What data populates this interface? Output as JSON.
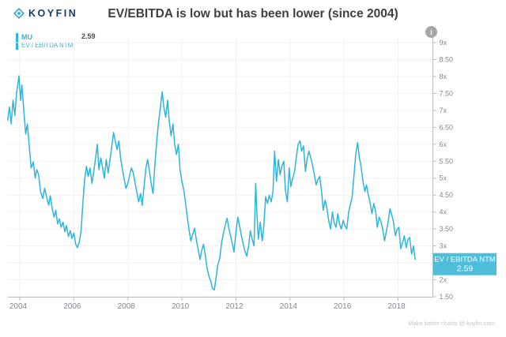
{
  "header": {
    "logo_text": "KOYFIN",
    "title": "EV/EBITDA is low but has been lower (since 2004)"
  },
  "legend": {
    "ticker": "MU",
    "series_label": "EV / EBITDA NTM",
    "last_value": "2.59"
  },
  "info_badge": {
    "glyph": "i"
  },
  "footer": {
    "credit": "Make better charts @ koyfin.com"
  },
  "colors": {
    "line": "#30b4d8",
    "label_box": "#3fb8d8",
    "label_text": "#ffffff",
    "grid": "#f1f2f4",
    "axis": "#b6bcc1",
    "tick_text": "#85898e",
    "title_text": "#3c4043",
    "logo_navy": "#1c3c66",
    "logo_cyan": "#2aa9d2"
  },
  "chart_data": {
    "type": "line",
    "title": "EV/EBITDA is low but has been lower (since 2004)",
    "series_name": "MU EV / EBITDA NTM",
    "xlabel": "",
    "ylabel": "EV / EBITDA NTM (x)",
    "grid": true,
    "legend_position": "top-left",
    "xlim": [
      2003.55,
      2019.25
    ],
    "ylim": [
      1.5,
      9
    ],
    "x_ticks": [
      2004,
      2006,
      2008,
      2010,
      2012,
      2014,
      2016,
      2018
    ],
    "y_ticks": [
      {
        "v": 9.0,
        "label": "9x"
      },
      {
        "v": 8.5,
        "label": "8.50"
      },
      {
        "v": 8.0,
        "label": "8x"
      },
      {
        "v": 7.5,
        "label": "7.50"
      },
      {
        "v": 7.0,
        "label": "7x"
      },
      {
        "v": 6.5,
        "label": "6.50"
      },
      {
        "v": 6.0,
        "label": "6x"
      },
      {
        "v": 5.5,
        "label": "5.50"
      },
      {
        "v": 5.0,
        "label": "5x"
      },
      {
        "v": 4.5,
        "label": "4.50"
      },
      {
        "v": 4.0,
        "label": "4x"
      },
      {
        "v": 3.5,
        "label": "3.50"
      },
      {
        "v": 3.0,
        "label": "3x"
      },
      {
        "v": 2.5,
        "label": "2.50"
      },
      {
        "v": 2.0,
        "label": "2x"
      },
      {
        "v": 1.5,
        "label": "1.50"
      }
    ],
    "last_value": 2.59,
    "last_value_label": {
      "line1": "EV / EBITDA NTM",
      "line2": "2.59"
    },
    "points": [
      [
        2003.55,
        6.7
      ],
      [
        2003.62,
        7.1
      ],
      [
        2003.68,
        6.6
      ],
      [
        2003.75,
        7.3
      ],
      [
        2003.82,
        6.85
      ],
      [
        2003.88,
        7.5
      ],
      [
        2003.97,
        8.02
      ],
      [
        2004.03,
        7.3
      ],
      [
        2004.08,
        7.75
      ],
      [
        2004.15,
        7.0
      ],
      [
        2004.22,
        6.3
      ],
      [
        2004.28,
        6.6
      ],
      [
        2004.35,
        5.95
      ],
      [
        2004.42,
        5.3
      ],
      [
        2004.5,
        5.48
      ],
      [
        2004.57,
        5.0
      ],
      [
        2004.63,
        5.25
      ],
      [
        2004.7,
        5.1
      ],
      [
        2004.77,
        4.6
      ],
      [
        2004.85,
        4.4
      ],
      [
        2004.92,
        4.7
      ],
      [
        2005.0,
        4.42
      ],
      [
        2005.07,
        4.2
      ],
      [
        2005.13,
        4.48
      ],
      [
        2005.2,
        4.1
      ],
      [
        2005.27,
        3.85
      ],
      [
        2005.33,
        4.05
      ],
      [
        2005.4,
        3.65
      ],
      [
        2005.47,
        3.8
      ],
      [
        2005.53,
        3.55
      ],
      [
        2005.6,
        3.7
      ],
      [
        2005.67,
        3.42
      ],
      [
        2005.73,
        3.6
      ],
      [
        2005.8,
        3.28
      ],
      [
        2005.87,
        3.45
      ],
      [
        2005.93,
        3.22
      ],
      [
        2006.0,
        3.38
      ],
      [
        2006.07,
        3.05
      ],
      [
        2006.13,
        2.95
      ],
      [
        2006.2,
        3.1
      ],
      [
        2006.27,
        3.45
      ],
      [
        2006.33,
        4.2
      ],
      [
        2006.4,
        4.95
      ],
      [
        2006.47,
        5.35
      ],
      [
        2006.53,
        5.05
      ],
      [
        2006.6,
        5.3
      ],
      [
        2006.67,
        4.85
      ],
      [
        2006.73,
        5.15
      ],
      [
        2006.8,
        5.55
      ],
      [
        2006.87,
        6.0
      ],
      [
        2006.93,
        5.25
      ],
      [
        2007.0,
        5.6
      ],
      [
        2007.07,
        5.3
      ],
      [
        2007.13,
        5.0
      ],
      [
        2007.2,
        5.55
      ],
      [
        2007.27,
        5.15
      ],
      [
        2007.33,
        5.5
      ],
      [
        2007.4,
        5.9
      ],
      [
        2007.47,
        6.35
      ],
      [
        2007.53,
        6.1
      ],
      [
        2007.6,
        5.85
      ],
      [
        2007.67,
        6.1
      ],
      [
        2007.73,
        5.6
      ],
      [
        2007.8,
        5.25
      ],
      [
        2007.87,
        4.95
      ],
      [
        2007.93,
        4.7
      ],
      [
        2008.0,
        4.85
      ],
      [
        2008.07,
        5.1
      ],
      [
        2008.13,
        5.3
      ],
      [
        2008.2,
        5.15
      ],
      [
        2008.27,
        4.85
      ],
      [
        2008.33,
        4.6
      ],
      [
        2008.4,
        4.3
      ],
      [
        2008.47,
        4.55
      ],
      [
        2008.53,
        4.2
      ],
      [
        2008.6,
        4.75
      ],
      [
        2008.67,
        5.3
      ],
      [
        2008.73,
        5.55
      ],
      [
        2008.8,
        5.2
      ],
      [
        2008.87,
        4.8
      ],
      [
        2008.93,
        4.55
      ],
      [
        2009.0,
        5.4
      ],
      [
        2009.07,
        6.1
      ],
      [
        2009.13,
        6.6
      ],
      [
        2009.2,
        7.05
      ],
      [
        2009.27,
        7.55
      ],
      [
        2009.33,
        7.1
      ],
      [
        2009.4,
        6.8
      ],
      [
        2009.47,
        7.3
      ],
      [
        2009.53,
        6.7
      ],
      [
        2009.6,
        6.25
      ],
      [
        2009.67,
        6.6
      ],
      [
        2009.73,
        6.0
      ],
      [
        2009.8,
        5.7
      ],
      [
        2009.87,
        6.0
      ],
      [
        2009.93,
        5.25
      ],
      [
        2010.0,
        4.9
      ],
      [
        2010.07,
        4.65
      ],
      [
        2010.13,
        4.3
      ],
      [
        2010.2,
        3.85
      ],
      [
        2010.27,
        3.45
      ],
      [
        2010.33,
        3.15
      ],
      [
        2010.4,
        3.35
      ],
      [
        2010.47,
        3.52
      ],
      [
        2010.53,
        3.2
      ],
      [
        2010.6,
        2.9
      ],
      [
        2010.67,
        2.6
      ],
      [
        2010.73,
        2.85
      ],
      [
        2010.8,
        3.05
      ],
      [
        2010.87,
        2.7
      ],
      [
        2010.93,
        2.35
      ],
      [
        2011.0,
        2.1
      ],
      [
        2011.07,
        1.95
      ],
      [
        2011.13,
        1.75
      ],
      [
        2011.2,
        1.7
      ],
      [
        2011.27,
        2.1
      ],
      [
        2011.33,
        2.45
      ],
      [
        2011.4,
        2.62
      ],
      [
        2011.47,
        3.1
      ],
      [
        2011.53,
        3.35
      ],
      [
        2011.6,
        3.6
      ],
      [
        2011.67,
        3.82
      ],
      [
        2011.73,
        3.55
      ],
      [
        2011.8,
        3.3
      ],
      [
        2011.87,
        3.05
      ],
      [
        2011.93,
        2.82
      ],
      [
        2012.0,
        3.4
      ],
      [
        2012.07,
        3.85
      ],
      [
        2012.13,
        3.6
      ],
      [
        2012.2,
        3.3
      ],
      [
        2012.27,
        3.05
      ],
      [
        2012.33,
        2.85
      ],
      [
        2012.4,
        2.7
      ],
      [
        2012.47,
        3.0
      ],
      [
        2012.53,
        3.45
      ],
      [
        2012.6,
        3.2
      ],
      [
        2012.67,
        3.0
      ],
      [
        2012.73,
        4.85
      ],
      [
        2012.78,
        3.9
      ],
      [
        2012.83,
        3.2
      ],
      [
        2012.9,
        3.7
      ],
      [
        2012.97,
        3.15
      ],
      [
        2013.03,
        3.55
      ],
      [
        2013.1,
        4.45
      ],
      [
        2013.17,
        4.25
      ],
      [
        2013.23,
        4.5
      ],
      [
        2013.3,
        4.3
      ],
      [
        2013.37,
        4.6
      ],
      [
        2013.43,
        5.8
      ],
      [
        2013.5,
        4.9
      ],
      [
        2013.57,
        5.55
      ],
      [
        2013.63,
        5.1
      ],
      [
        2013.7,
        5.35
      ],
      [
        2013.77,
        5.5
      ],
      [
        2013.83,
        4.65
      ],
      [
        2013.9,
        4.3
      ],
      [
        2013.97,
        5.3
      ],
      [
        2014.03,
        4.75
      ],
      [
        2014.1,
        5.0
      ],
      [
        2014.17,
        5.2
      ],
      [
        2014.23,
        5.6
      ],
      [
        2014.3,
        6.0
      ],
      [
        2014.37,
        6.1
      ],
      [
        2014.43,
        5.8
      ],
      [
        2014.5,
        5.95
      ],
      [
        2014.57,
        5.2
      ],
      [
        2014.63,
        5.55
      ],
      [
        2014.7,
        5.8
      ],
      [
        2014.77,
        5.6
      ],
      [
        2014.83,
        5.4
      ],
      [
        2014.9,
        5.1
      ],
      [
        2014.97,
        4.8
      ],
      [
        2015.03,
        4.95
      ],
      [
        2015.1,
        5.05
      ],
      [
        2015.17,
        4.6
      ],
      [
        2015.23,
        4.05
      ],
      [
        2015.3,
        4.35
      ],
      [
        2015.37,
        4.1
      ],
      [
        2015.43,
        3.75
      ],
      [
        2015.5,
        3.5
      ],
      [
        2015.57,
        4.0
      ],
      [
        2015.63,
        3.7
      ],
      [
        2015.7,
        3.55
      ],
      [
        2015.77,
        3.95
      ],
      [
        2015.83,
        3.65
      ],
      [
        2015.9,
        3.5
      ],
      [
        2015.97,
        3.75
      ],
      [
        2016.03,
        3.6
      ],
      [
        2016.1,
        3.5
      ],
      [
        2016.17,
        4.0
      ],
      [
        2016.23,
        4.2
      ],
      [
        2016.3,
        4.45
      ],
      [
        2016.37,
        5.1
      ],
      [
        2016.43,
        5.7
      ],
      [
        2016.5,
        6.05
      ],
      [
        2016.57,
        5.6
      ],
      [
        2016.63,
        5.35
      ],
      [
        2016.7,
        4.9
      ],
      [
        2016.77,
        4.6
      ],
      [
        2016.83,
        4.8
      ],
      [
        2016.9,
        4.5
      ],
      [
        2016.97,
        4.25
      ],
      [
        2017.03,
        3.95
      ],
      [
        2017.1,
        4.25
      ],
      [
        2017.17,
        4.0
      ],
      [
        2017.23,
        3.55
      ],
      [
        2017.3,
        3.85
      ],
      [
        2017.37,
        3.7
      ],
      [
        2017.43,
        3.5
      ],
      [
        2017.5,
        3.15
      ],
      [
        2017.57,
        3.45
      ],
      [
        2017.63,
        3.7
      ],
      [
        2017.7,
        4.1
      ],
      [
        2017.77,
        3.9
      ],
      [
        2017.83,
        3.7
      ],
      [
        2017.9,
        3.3
      ],
      [
        2017.97,
        3.5
      ],
      [
        2018.03,
        3.55
      ],
      [
        2018.1,
        2.92
      ],
      [
        2018.17,
        3.1
      ],
      [
        2018.23,
        3.3
      ],
      [
        2018.3,
        2.95
      ],
      [
        2018.37,
        3.2
      ],
      [
        2018.43,
        3.25
      ],
      [
        2018.5,
        2.76
      ],
      [
        2018.57,
        3.0
      ],
      [
        2018.63,
        2.59
      ]
    ]
  }
}
